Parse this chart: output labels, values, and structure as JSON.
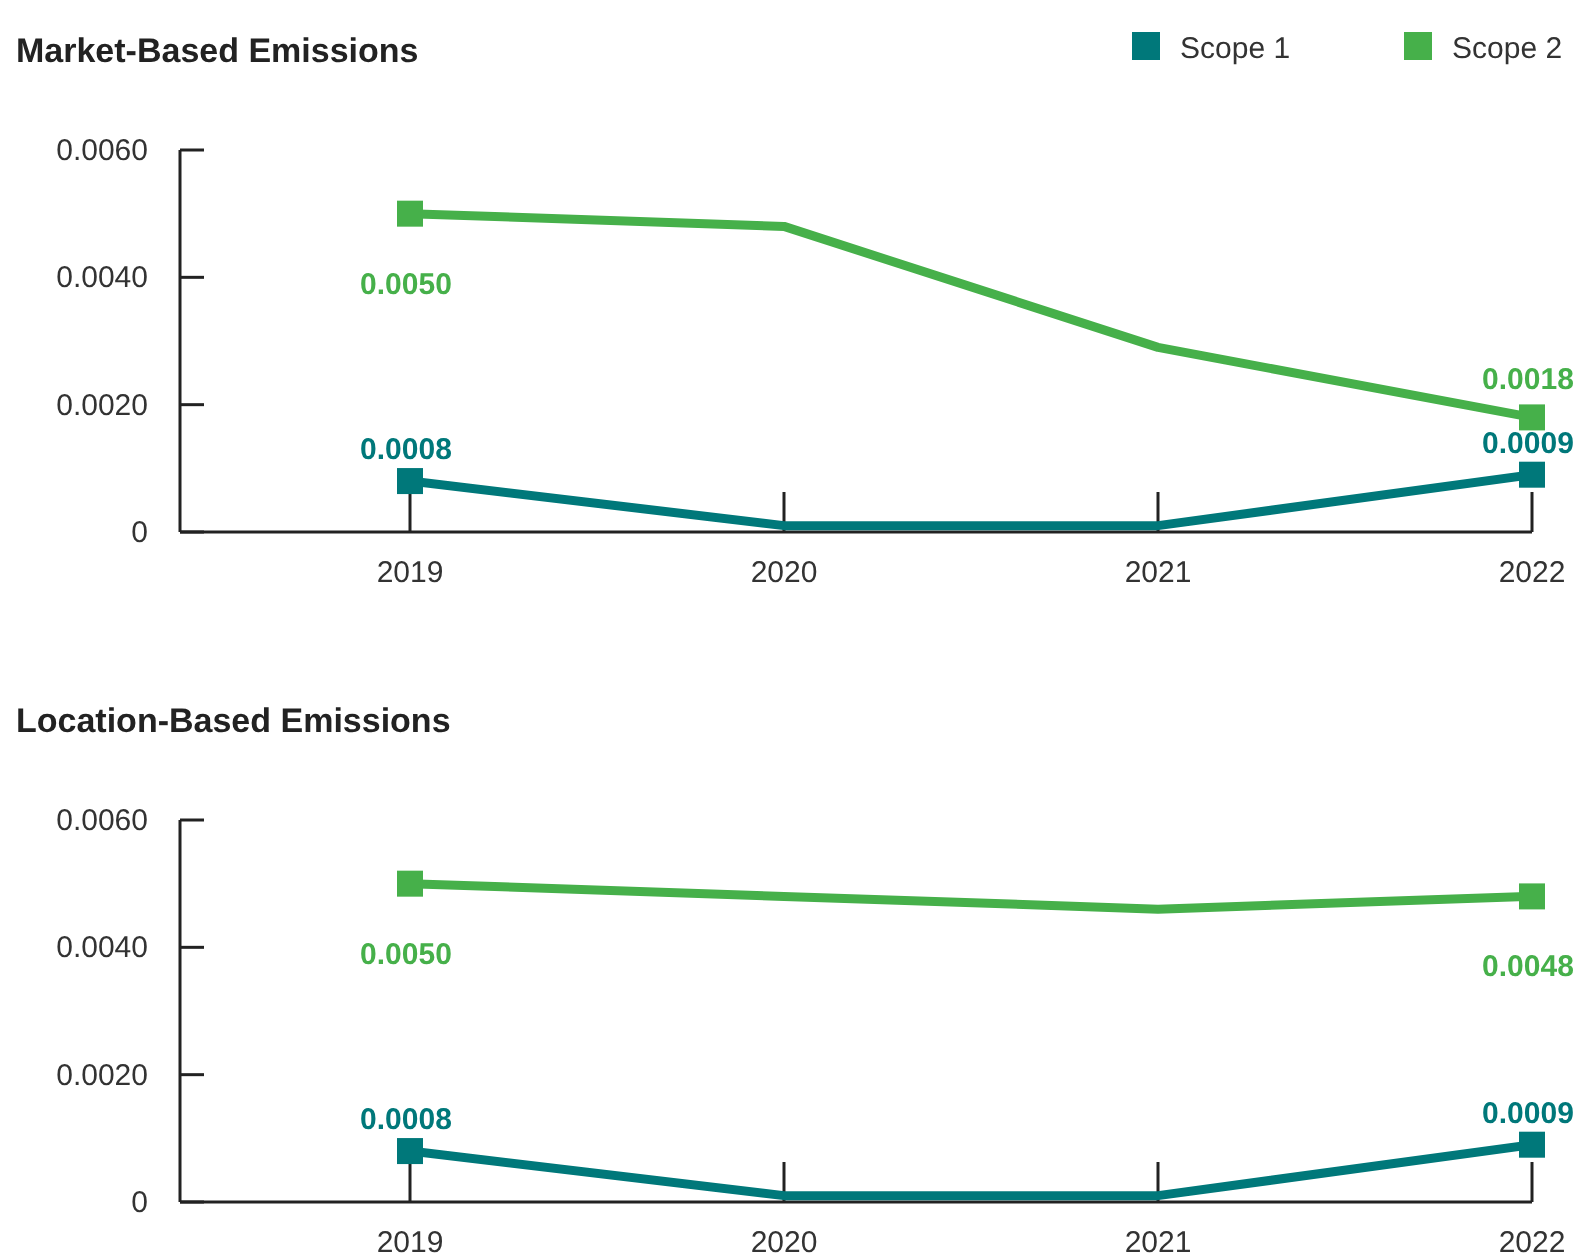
{
  "chart_data": [
    {
      "type": "line",
      "title": "Market-Based Emissions",
      "categories": [
        "2019",
        "2020",
        "2021",
        "2022"
      ],
      "ylim": [
        0,
        0.006
      ],
      "yticks": [
        0,
        {
          "value": 0.002,
          "label": "0.0020"
        },
        {
          "value": 0.004,
          "label": "0.0040"
        },
        {
          "value": 0.006,
          "label": "0.0060"
        }
      ],
      "grid": false,
      "legend": "top right",
      "marker": "square",
      "line_style": "solid",
      "series": [
        {
          "name": "Scope 1",
          "color": "#00787a",
          "values": [
            0.0008,
            0.0001,
            0.0001,
            0.0009
          ],
          "value_labels": [
            "0.0008",
            null,
            null,
            "0.0009"
          ]
        },
        {
          "name": "Scope 2",
          "color": "#46b04a",
          "values": [
            0.005,
            0.0048,
            0.0029,
            0.0018
          ],
          "value_labels": [
            "0.0050",
            null,
            null,
            "0.0018"
          ]
        }
      ]
    },
    {
      "type": "line",
      "title": "Location-Based Emissions",
      "categories": [
        "2019",
        "2020",
        "2021",
        "2022"
      ],
      "ylim": [
        0,
        0.006
      ],
      "yticks": [
        0,
        {
          "value": 0.002,
          "label": "0.0020"
        },
        {
          "value": 0.004,
          "label": "0.0040"
        },
        {
          "value": 0.006,
          "label": "0.0060"
        }
      ],
      "grid": false,
      "legend": false,
      "marker": "square",
      "line_style": "solid",
      "series": [
        {
          "color": "#00787a",
          "values": [
            0.0008,
            0.0001,
            0.0001,
            0.0009
          ],
          "value_labels": [
            "0.0008",
            null,
            null,
            "0.0009"
          ]
        },
        {
          "color": "#46b04a",
          "values": [
            0.005,
            0.0048,
            0.0046,
            0.0048
          ],
          "value_labels": [
            "0.0050",
            null,
            null,
            "0.0048"
          ]
        }
      ]
    }
  ]
}
